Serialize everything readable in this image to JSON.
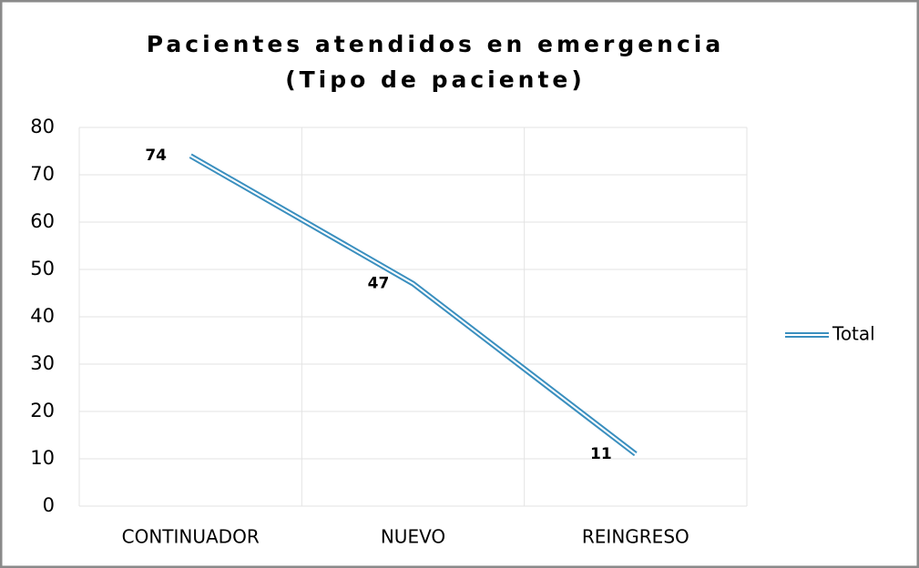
{
  "chart_data": {
    "type": "line",
    "title": [
      "Pacientes atendidos en emergencia",
      "(Tipo de paciente)"
    ],
    "categories": [
      "CONTINUADOR",
      "NUEVO",
      "REINGRESO"
    ],
    "series": [
      {
        "name": "Total",
        "color": "#3a8fbf",
        "values": [
          74,
          47,
          11
        ]
      }
    ],
    "ylim": [
      0,
      80
    ],
    "yticks": [
      0,
      10,
      20,
      30,
      40,
      50,
      60,
      70,
      80
    ],
    "grid": true,
    "legend": "right"
  }
}
